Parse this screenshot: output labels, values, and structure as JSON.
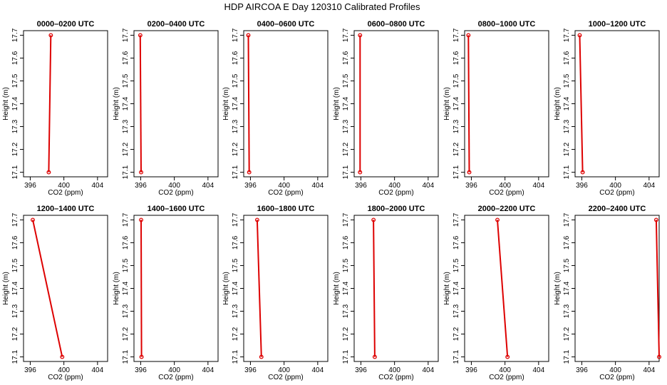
{
  "title": "HDP AIRCOA E  Day 120310  Calibrated Profiles",
  "colors": {
    "series": "#dd0000",
    "axes": "#000000",
    "background": "#ffffff"
  },
  "chart_data": [
    {
      "type": "line",
      "title": "0000–0200 UTC",
      "xlabel": "CO2 (ppm)",
      "ylabel": "Height (m)",
      "xlim": [
        395.2,
        405.2
      ],
      "ylim": [
        17.08,
        17.72
      ],
      "x_ticks": [
        "396",
        "400",
        "404"
      ],
      "y_ticks": [
        "17.1",
        "17.2",
        "17.3",
        "17.4",
        "17.5",
        "17.6",
        "17.7"
      ],
      "x": [
        398.2,
        398.45
      ],
      "y": [
        17.1,
        17.7
      ]
    },
    {
      "type": "line",
      "title": "0200–0400 UTC",
      "xlabel": "CO2 (ppm)",
      "ylabel": "Height (m)",
      "xlim": [
        395.2,
        405.2
      ],
      "ylim": [
        17.08,
        17.72
      ],
      "x_ticks": [
        "396",
        "400",
        "404"
      ],
      "y_ticks": [
        "17.1",
        "17.2",
        "17.3",
        "17.4",
        "17.5",
        "17.6",
        "17.7"
      ],
      "x": [
        396.05,
        395.95
      ],
      "y": [
        17.1,
        17.7
      ]
    },
    {
      "type": "line",
      "title": "0400–0600 UTC",
      "xlabel": "CO2 (ppm)",
      "ylabel": "Height (m)",
      "xlim": [
        395.2,
        405.2
      ],
      "ylim": [
        17.08,
        17.72
      ],
      "x_ticks": [
        "396",
        "400",
        "404"
      ],
      "y_ticks": [
        "17.1",
        "17.2",
        "17.3",
        "17.4",
        "17.5",
        "17.6",
        "17.7"
      ],
      "x": [
        395.85,
        395.75
      ],
      "y": [
        17.1,
        17.7
      ]
    },
    {
      "type": "line",
      "title": "0600–0800 UTC",
      "xlabel": "CO2 (ppm)",
      "ylabel": "Height (m)",
      "xlim": [
        395.2,
        405.2
      ],
      "ylim": [
        17.08,
        17.72
      ],
      "x_ticks": [
        "396",
        "400",
        "404"
      ],
      "y_ticks": [
        "17.1",
        "17.2",
        "17.3",
        "17.4",
        "17.5",
        "17.6",
        "17.7"
      ],
      "x": [
        395.9,
        395.9
      ],
      "y": [
        17.1,
        17.7
      ]
    },
    {
      "type": "line",
      "title": "0800–1000 UTC",
      "xlabel": "CO2 (ppm)",
      "ylabel": "Height (m)",
      "xlim": [
        395.2,
        405.2
      ],
      "ylim": [
        17.08,
        17.72
      ],
      "x_ticks": [
        "396",
        "400",
        "404"
      ],
      "y_ticks": [
        "17.1",
        "17.2",
        "17.3",
        "17.4",
        "17.5",
        "17.6",
        "17.7"
      ],
      "x": [
        395.75,
        395.65
      ],
      "y": [
        17.1,
        17.7
      ]
    },
    {
      "type": "line",
      "title": "1000–1200 UTC",
      "xlabel": "CO2 (ppm)",
      "ylabel": "Height (m)",
      "xlim": [
        395.2,
        405.2
      ],
      "ylim": [
        17.08,
        17.72
      ],
      "x_ticks": [
        "396",
        "400",
        "404"
      ],
      "y_ticks": [
        "17.1",
        "17.2",
        "17.3",
        "17.4",
        "17.5",
        "17.6",
        "17.7"
      ],
      "x": [
        396.1,
        395.75
      ],
      "y": [
        17.1,
        17.7
      ]
    },
    {
      "type": "line",
      "title": "1200–1400 UTC",
      "xlabel": "CO2 (ppm)",
      "ylabel": "Height (m)",
      "xlim": [
        395.2,
        405.2
      ],
      "ylim": [
        17.08,
        17.72
      ],
      "x_ticks": [
        "396",
        "400",
        "404"
      ],
      "y_ticks": [
        "17.1",
        "17.2",
        "17.3",
        "17.4",
        "17.5",
        "17.6",
        "17.7"
      ],
      "x": [
        399.8,
        396.3
      ],
      "y": [
        17.1,
        17.7
      ]
    },
    {
      "type": "line",
      "title": "1400–1600 UTC",
      "xlabel": "CO2 (ppm)",
      "ylabel": "Height (m)",
      "xlim": [
        395.2,
        405.2
      ],
      "ylim": [
        17.08,
        17.72
      ],
      "x_ticks": [
        "396",
        "400",
        "404"
      ],
      "y_ticks": [
        "17.1",
        "17.2",
        "17.3",
        "17.4",
        "17.5",
        "17.6",
        "17.7"
      ],
      "x": [
        396.1,
        396.05
      ],
      "y": [
        17.1,
        17.7
      ]
    },
    {
      "type": "line",
      "title": "1600–1800 UTC",
      "xlabel": "CO2 (ppm)",
      "ylabel": "Height (m)",
      "xlim": [
        395.2,
        405.2
      ],
      "ylim": [
        17.08,
        17.72
      ],
      "x_ticks": [
        "396",
        "400",
        "404"
      ],
      "y_ticks": [
        "17.1",
        "17.2",
        "17.3",
        "17.4",
        "17.5",
        "17.6",
        "17.7"
      ],
      "x": [
        397.3,
        396.8
      ],
      "y": [
        17.1,
        17.7
      ]
    },
    {
      "type": "line",
      "title": "1800–2000 UTC",
      "xlabel": "CO2 (ppm)",
      "ylabel": "Height (m)",
      "xlim": [
        395.2,
        405.2
      ],
      "ylim": [
        17.08,
        17.72
      ],
      "x_ticks": [
        "396",
        "400",
        "404"
      ],
      "y_ticks": [
        "17.1",
        "17.2",
        "17.3",
        "17.4",
        "17.5",
        "17.6",
        "17.7"
      ],
      "x": [
        397.65,
        397.5
      ],
      "y": [
        17.1,
        17.7
      ]
    },
    {
      "type": "line",
      "title": "2000–2200 UTC",
      "xlabel": "CO2 (ppm)",
      "ylabel": "Height (m)",
      "xlim": [
        395.2,
        405.2
      ],
      "ylim": [
        17.08,
        17.72
      ],
      "x_ticks": [
        "396",
        "400",
        "404"
      ],
      "y_ticks": [
        "17.1",
        "17.2",
        "17.3",
        "17.4",
        "17.5",
        "17.6",
        "17.7"
      ],
      "x": [
        400.3,
        399.1
      ],
      "y": [
        17.1,
        17.7
      ]
    },
    {
      "type": "line",
      "title": "2200–2400 UTC",
      "xlabel": "CO2 (ppm)",
      "ylabel": "Height (m)",
      "xlim": [
        395.2,
        405.2
      ],
      "ylim": [
        17.08,
        17.72
      ],
      "x_ticks": [
        "396",
        "400",
        "404"
      ],
      "y_ticks": [
        "17.1",
        "17.2",
        "17.3",
        "17.4",
        "17.5",
        "17.6",
        "17.7"
      ],
      "x": [
        405.2,
        404.85
      ],
      "y": [
        17.1,
        17.7
      ]
    }
  ]
}
